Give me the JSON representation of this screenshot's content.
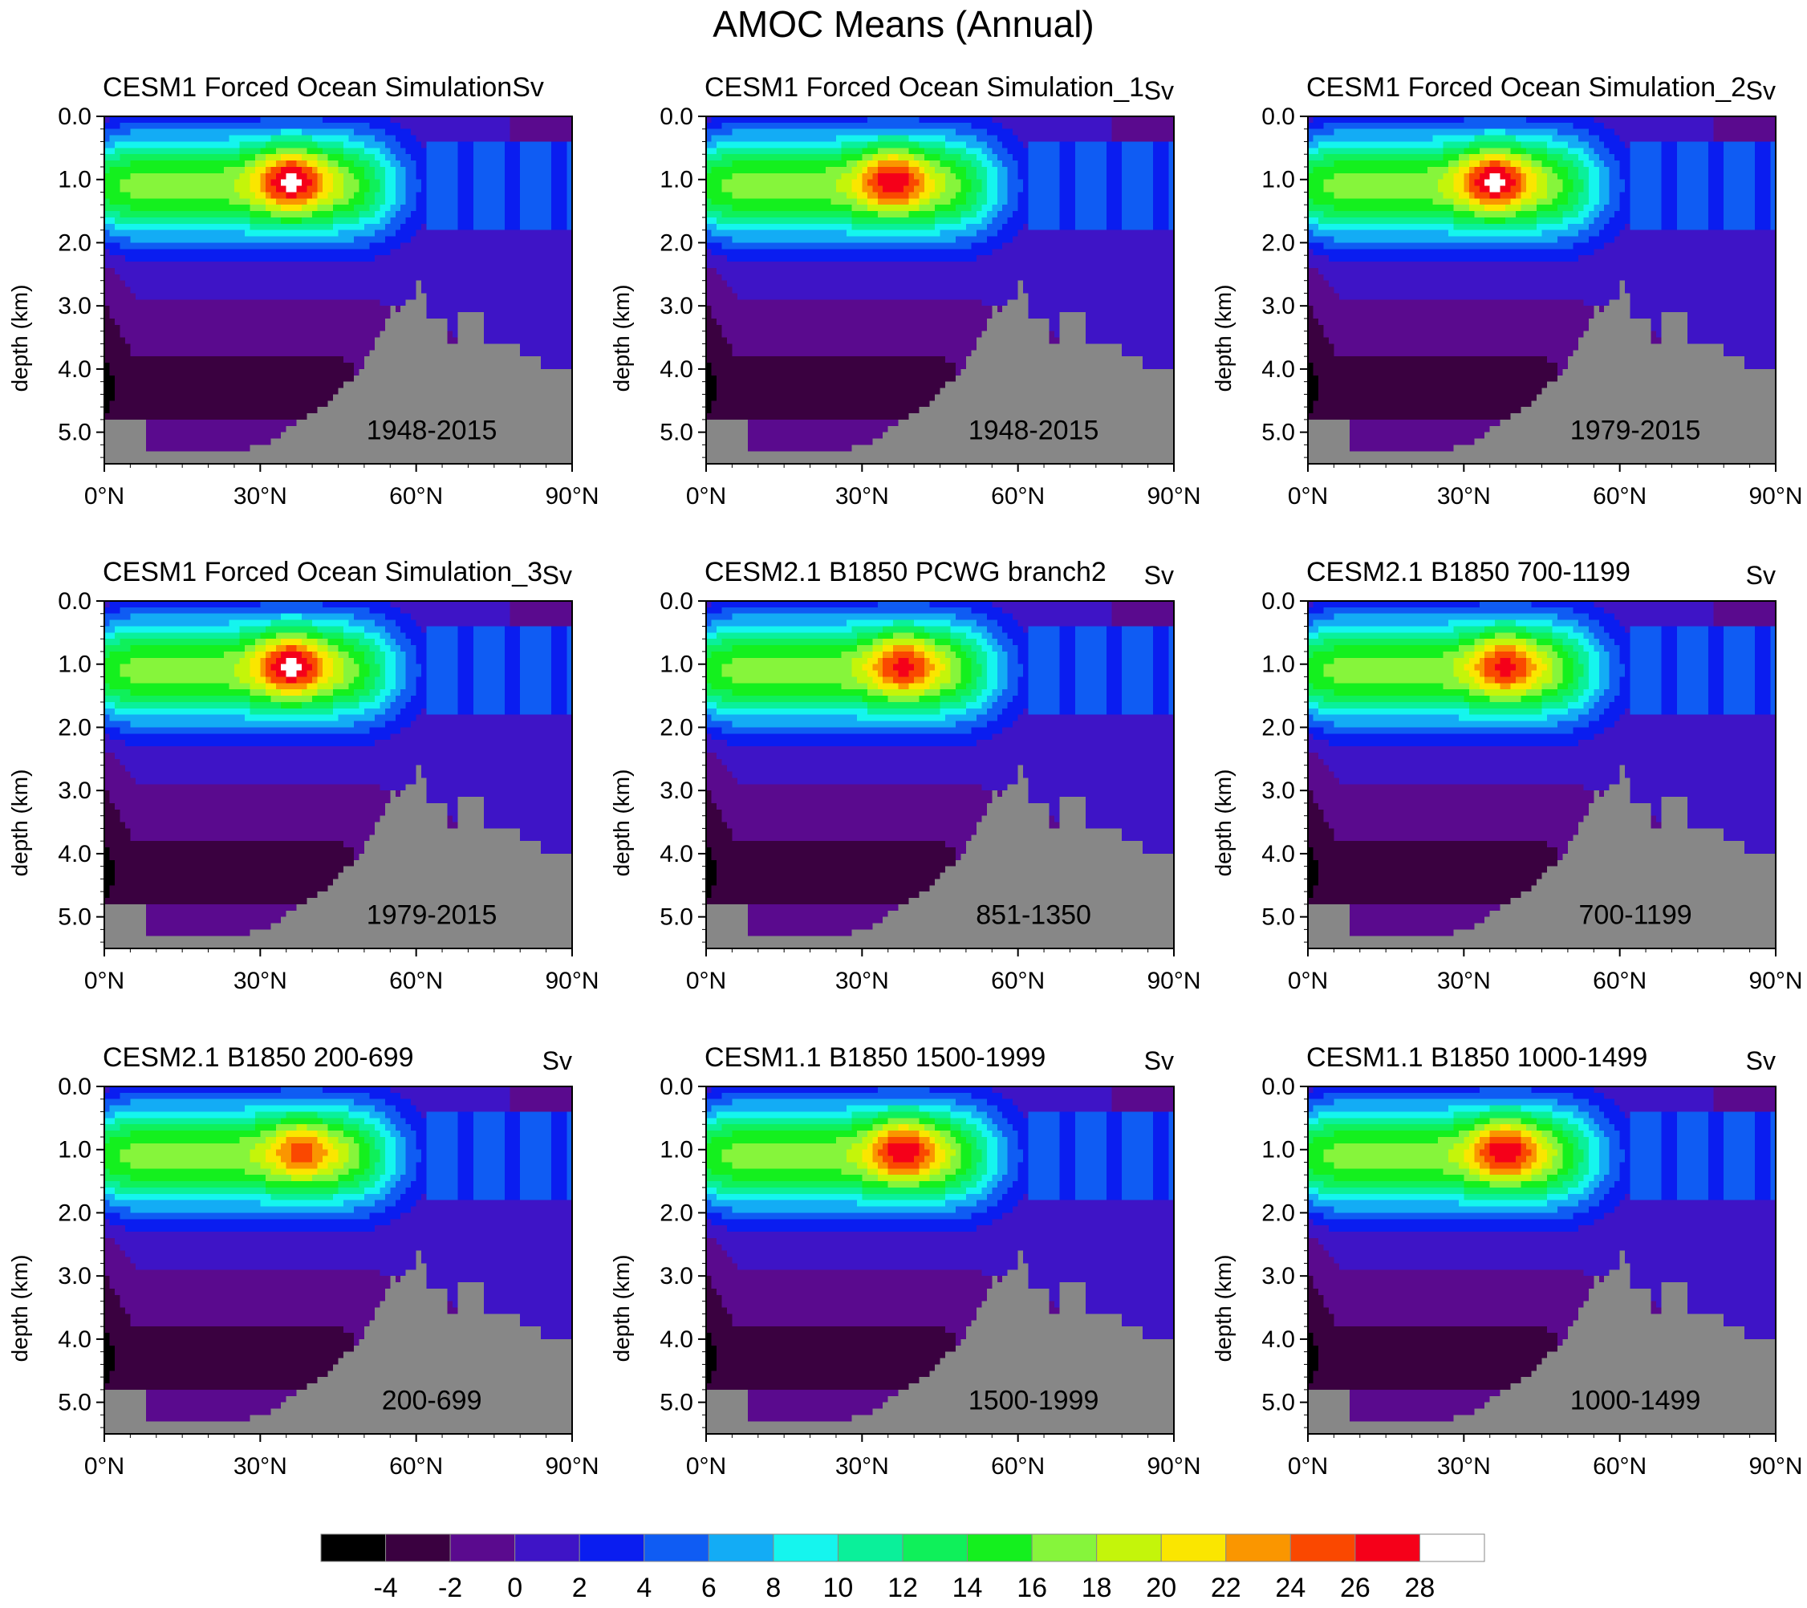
{
  "title": "AMOC Means (Annual)",
  "colors": {
    "land": "#878787",
    "levels": [
      "#000000",
      "#3a0140",
      "#5a0a8e",
      "#3e14c6",
      "#0a1df0",
      "#0f5cf3",
      "#13acf5",
      "#15f5ee",
      "#0af09a",
      "#0ff05a",
      "#14f01e",
      "#86f53b",
      "#c4f50a",
      "#fae600",
      "#fa9600",
      "#fa4800",
      "#f50019",
      "#ffffff"
    ]
  },
  "colorbar": {
    "labels": [
      "-4",
      "-2",
      "0",
      "2",
      "4",
      "6",
      "8",
      "10",
      "12",
      "14",
      "16",
      "18",
      "20",
      "22",
      "24",
      "26",
      "28"
    ]
  },
  "chart_data": [
    {
      "type": "heatmap",
      "title": "CESM1 Forced Ocean SimulationSv",
      "units": "",
      "period": "1948-2015",
      "ylabel": "depth (km)",
      "xlim": [
        0,
        90
      ],
      "ylim": [
        5.5,
        0
      ],
      "x_ticks": [
        "0°N",
        "30°N",
        "60°N",
        "90°N"
      ],
      "y_ticks": [
        "0.0",
        "1.0",
        "2.0",
        "3.0",
        "4.0",
        "5.0"
      ],
      "max_sv": 27,
      "max_lat": 36,
      "max_depth": 1.0
    },
    {
      "type": "heatmap",
      "title": "CESM1 Forced Ocean Simulation_1",
      "units": "Sv",
      "period": "1948-2015",
      "ylabel": "depth (km)",
      "xlim": [
        0,
        90
      ],
      "ylim": [
        5.5,
        0
      ],
      "x_ticks": [
        "0°N",
        "30°N",
        "60°N",
        "90°N"
      ],
      "y_ticks": [
        "0.0",
        "1.0",
        "2.0",
        "3.0",
        "4.0",
        "5.0"
      ],
      "max_sv": 26,
      "max_lat": 36,
      "max_depth": 1.0
    },
    {
      "type": "heatmap",
      "title": "CESM1 Forced Ocean Simulation_2",
      "units": "Sv",
      "period": "1979-2015",
      "ylabel": "depth (km)",
      "xlim": [
        0,
        90
      ],
      "ylim": [
        5.5,
        0
      ],
      "x_ticks": [
        "0°N",
        "30°N",
        "60°N",
        "90°N"
      ],
      "y_ticks": [
        "0.0",
        "1.0",
        "2.0",
        "3.0",
        "4.0",
        "5.0"
      ],
      "max_sv": 27,
      "max_lat": 36,
      "max_depth": 1.0
    },
    {
      "type": "heatmap",
      "title": "CESM1 Forced Ocean Simulation_3",
      "units": "Sv",
      "period": "1979-2015",
      "ylabel": "depth (km)",
      "xlim": [
        0,
        90
      ],
      "ylim": [
        5.5,
        0
      ],
      "x_ticks": [
        "0°N",
        "30°N",
        "60°N",
        "90°N"
      ],
      "y_ticks": [
        "0.0",
        "1.0",
        "2.0",
        "3.0",
        "4.0",
        "5.0"
      ],
      "max_sv": 27,
      "max_lat": 36,
      "max_depth": 1.0
    },
    {
      "type": "heatmap",
      "title": "CESM2.1 B1850 PCWG branch2",
      "units": "Sv",
      "period": "851-1350",
      "ylabel": "depth (km)",
      "xlim": [
        0,
        90
      ],
      "ylim": [
        5.5,
        0
      ],
      "x_ticks": [
        "0°N",
        "30°N",
        "60°N",
        "90°N"
      ],
      "y_ticks": [
        "0.0",
        "1.0",
        "2.0",
        "3.0",
        "4.0",
        "5.0"
      ],
      "max_sv": 25,
      "max_lat": 38,
      "max_depth": 1.0
    },
    {
      "type": "heatmap",
      "title": "CESM2.1 B1850 700-1199",
      "units": "Sv",
      "period": "700-1199",
      "ylabel": "depth (km)",
      "xlim": [
        0,
        90
      ],
      "ylim": [
        5.5,
        0
      ],
      "x_ticks": [
        "0°N",
        "30°N",
        "60°N",
        "90°N"
      ],
      "y_ticks": [
        "0.0",
        "1.0",
        "2.0",
        "3.0",
        "4.0",
        "5.0"
      ],
      "max_sv": 25,
      "max_lat": 38,
      "max_depth": 1.0
    },
    {
      "type": "heatmap",
      "title": "CESM2.1 B1850 200-699",
      "units": "Sv",
      "period": "200-699",
      "ylabel": "depth (km)",
      "xlim": [
        0,
        90
      ],
      "ylim": [
        5.5,
        0
      ],
      "x_ticks": [
        "0°N",
        "30°N",
        "60°N",
        "90°N"
      ],
      "y_ticks": [
        "0.0",
        "1.0",
        "2.0",
        "3.0",
        "4.0",
        "5.0"
      ],
      "max_sv": 23,
      "max_lat": 38,
      "max_depth": 1.0
    },
    {
      "type": "heatmap",
      "title": "CESM1.1 B1850 1500-1999",
      "units": "Sv",
      "period": "1500-1999",
      "ylabel": "depth (km)",
      "xlim": [
        0,
        90
      ],
      "ylim": [
        5.5,
        0
      ],
      "x_ticks": [
        "0°N",
        "30°N",
        "60°N",
        "90°N"
      ],
      "y_ticks": [
        "0.0",
        "1.0",
        "2.0",
        "3.0",
        "4.0",
        "5.0"
      ],
      "max_sv": 26,
      "max_lat": 38,
      "max_depth": 1.0
    },
    {
      "type": "heatmap",
      "title": "CESM1.1 B1850 1000-1499",
      "units": "Sv",
      "period": "1000-1499",
      "ylabel": "depth (km)",
      "xlim": [
        0,
        90
      ],
      "ylim": [
        5.5,
        0
      ],
      "x_ticks": [
        "0°N",
        "30°N",
        "60°N",
        "90°N"
      ],
      "y_ticks": [
        "0.0",
        "1.0",
        "2.0",
        "3.0",
        "4.0",
        "5.0"
      ],
      "max_sv": 26,
      "max_lat": 38,
      "max_depth": 1.0
    }
  ]
}
